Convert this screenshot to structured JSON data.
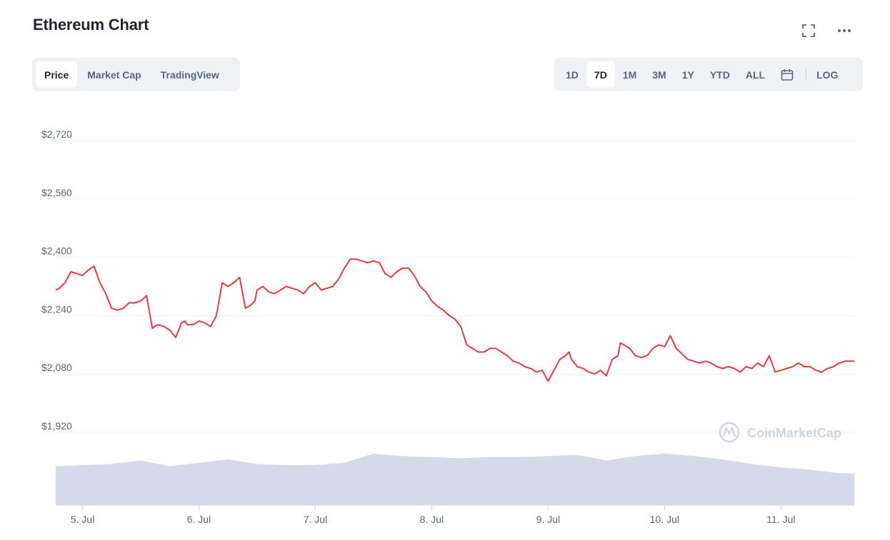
{
  "header": {
    "title": "Ethereum Chart",
    "fullscreen_icon": "expand-icon",
    "more_icon": "more-horizontal-icon"
  },
  "view_tabs": [
    {
      "label": "Price",
      "active": true
    },
    {
      "label": "Market Cap",
      "active": false
    },
    {
      "label": "TradingView",
      "active": false
    }
  ],
  "range_tabs": [
    {
      "label": "1D",
      "active": false
    },
    {
      "label": "7D",
      "active": true
    },
    {
      "label": "1M",
      "active": false
    },
    {
      "label": "3M",
      "active": false
    },
    {
      "label": "1Y",
      "active": false
    },
    {
      "label": "YTD",
      "active": false
    },
    {
      "label": "ALL",
      "active": false
    }
  ],
  "calendar_icon": "calendar-icon",
  "log_label": "LOG",
  "watermark": {
    "text": "CoinMarketCap",
    "icon": "coinmarketcap-logo-icon"
  },
  "colors": {
    "line": "#ea3943",
    "volume": "#cfd6e4",
    "grid": "#eff2f5",
    "axis_text": "#58667e"
  },
  "chart_data": {
    "type": "line",
    "title": "Ethereum Chart",
    "y_tick_labels": [
      "$2,720",
      "$2,560",
      "$2,400",
      "$2,240",
      "$2,080",
      "$1,920"
    ],
    "y_ticks": [
      2720,
      2560,
      2400,
      2240,
      2080,
      1920
    ],
    "ylim": [
      1920,
      2720
    ],
    "x_tick_labels": [
      "5. Jul",
      "6. Jul",
      "7. Jul",
      "8. Jul",
      "9. Jul",
      "10. Jul",
      "11. Jul"
    ],
    "x_ticks": [
      5,
      6,
      7,
      8,
      9,
      10,
      11
    ],
    "xlim": [
      4.77,
      11.63
    ],
    "grid": true,
    "series": [
      {
        "values_x": [
          4.77,
          4.8,
          4.85,
          4.9,
          4.95,
          5.0,
          5.05,
          5.1,
          5.15,
          5.2,
          5.25,
          5.3,
          5.35,
          5.4,
          5.45,
          5.5,
          5.55,
          5.6,
          5.62,
          5.65,
          5.7,
          5.75,
          5.8,
          5.85,
          5.88,
          5.9,
          5.95,
          6.0,
          6.05,
          6.1,
          6.15,
          6.2,
          6.25,
          6.3,
          6.35,
          6.4,
          6.45,
          6.48,
          6.5,
          6.55,
          6.6,
          6.65,
          6.7,
          6.75,
          6.8,
          6.85,
          6.9,
          6.95,
          7.0,
          7.05,
          7.1,
          7.15,
          7.2,
          7.25,
          7.3,
          7.35,
          7.4,
          7.45,
          7.5,
          7.55,
          7.6,
          7.65,
          7.7,
          7.75,
          7.8,
          7.85,
          7.9,
          7.95,
          8.0,
          8.05,
          8.1,
          8.15,
          8.2,
          8.25,
          8.3,
          8.35,
          8.4,
          8.45,
          8.5,
          8.55,
          8.6,
          8.65,
          8.7,
          8.75,
          8.8,
          8.85,
          8.9,
          8.95,
          9.0,
          9.05,
          9.1,
          9.15,
          9.18,
          9.2,
          9.25,
          9.3,
          9.35,
          9.4,
          9.45,
          9.5,
          9.55,
          9.6,
          9.62,
          9.65,
          9.7,
          9.75,
          9.8,
          9.85,
          9.9,
          9.95,
          10.0,
          10.05,
          10.1,
          10.15,
          10.2,
          10.25,
          10.3,
          10.35,
          10.4,
          10.45,
          10.5,
          10.55,
          10.6,
          10.65,
          10.7,
          10.75,
          10.8,
          10.85,
          10.9,
          10.95,
          11.0,
          11.05,
          11.1,
          11.15,
          11.2,
          11.25,
          11.3,
          11.35,
          11.4,
          11.45,
          11.5,
          11.55,
          11.6,
          11.63
        ],
        "values": [
          2310,
          2315,
          2330,
          2360,
          2355,
          2350,
          2365,
          2375,
          2330,
          2300,
          2260,
          2255,
          2260,
          2275,
          2275,
          2280,
          2295,
          2205,
          2210,
          2215,
          2210,
          2200,
          2180,
          2220,
          2225,
          2215,
          2215,
          2225,
          2220,
          2210,
          2240,
          2330,
          2320,
          2330,
          2345,
          2260,
          2270,
          2280,
          2310,
          2320,
          2305,
          2300,
          2310,
          2320,
          2315,
          2310,
          2300,
          2320,
          2330,
          2310,
          2315,
          2320,
          2340,
          2370,
          2395,
          2395,
          2390,
          2385,
          2390,
          2385,
          2355,
          2345,
          2360,
          2370,
          2370,
          2350,
          2320,
          2305,
          2280,
          2265,
          2255,
          2240,
          2230,
          2210,
          2160,
          2150,
          2140,
          2140,
          2150,
          2150,
          2140,
          2130,
          2115,
          2110,
          2100,
          2095,
          2085,
          2090,
          2060,
          2090,
          2120,
          2130,
          2140,
          2120,
          2100,
          2095,
          2085,
          2080,
          2090,
          2075,
          2120,
          2130,
          2165,
          2160,
          2150,
          2130,
          2125,
          2130,
          2150,
          2160,
          2155,
          2185,
          2150,
          2135,
          2120,
          2115,
          2110,
          2115,
          2110,
          2100,
          2095,
          2100,
          2095,
          2085,
          2100,
          2095,
          2110,
          2100,
          2130,
          2085,
          2090,
          2095,
          2100,
          2110,
          2100,
          2100,
          2090,
          2085,
          2095,
          2100,
          2110,
          2115,
          2115,
          2115
        ]
      }
    ],
    "volume": {
      "x": [
        4.77,
        5.0,
        5.25,
        5.5,
        5.75,
        6.0,
        6.25,
        6.5,
        6.75,
        7.0,
        7.25,
        7.5,
        7.75,
        8.0,
        8.25,
        8.5,
        8.75,
        9.0,
        9.25,
        9.5,
        9.75,
        10.0,
        10.25,
        10.5,
        10.75,
        11.0,
        11.25,
        11.5,
        11.63
      ],
      "values": [
        0.68,
        0.7,
        0.72,
        0.78,
        0.68,
        0.74,
        0.8,
        0.72,
        0.7,
        0.7,
        0.74,
        0.9,
        0.86,
        0.84,
        0.82,
        0.84,
        0.84,
        0.86,
        0.88,
        0.78,
        0.86,
        0.9,
        0.86,
        0.8,
        0.72,
        0.66,
        0.62,
        0.56,
        0.55
      ]
    }
  }
}
